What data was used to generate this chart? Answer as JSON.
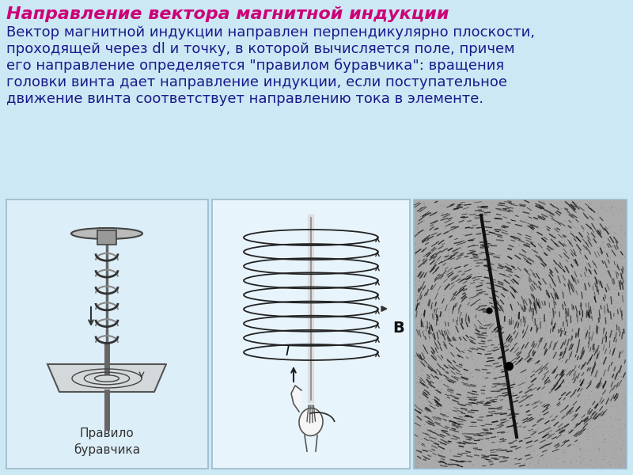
{
  "bg_color": "#cce8f4",
  "title": "Направление вектора магнитной индукции",
  "title_color": "#cc0077",
  "title_fontsize": 16,
  "body_color": "#1a1a8c",
  "body_fontsize": 13,
  "body_lines": [
    "Вектор магнитной индукции направлен перпендикулярно плоскости,",
    "проходящей через dl и точку, в которой вычисляется поле, причем",
    "его направление определяется \"правилом буравчика\": вращения",
    "головки винта дает направление индукции, если поступательное",
    "движение винта соответствует направлению тока в элементе."
  ],
  "caption1": "Правило\nбуравчика",
  "caption1_color": "#333333",
  "label_I": "I",
  "label_B": "B",
  "panel1_bg": "#dceef8",
  "panel2_bg": "#e8f4fc",
  "panel3_bg": "#aaaaaa",
  "panel_border": "#99bbcc"
}
